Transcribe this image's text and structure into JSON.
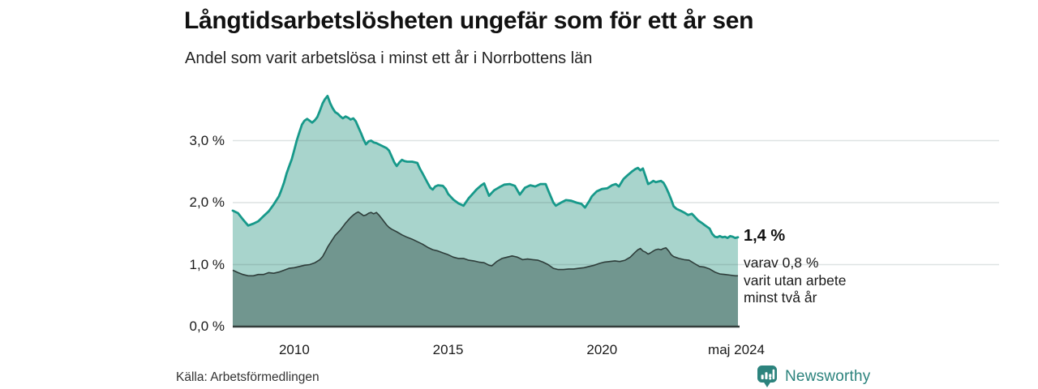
{
  "header": {
    "title": "Långtidsarbetslösheten ungefär som för ett år sen",
    "subtitle": "Andel som varit arbetslösa i minst ett år i Norrbottens län"
  },
  "annotation": {
    "value_label": "1,4 %",
    "detail_lines": [
      "varav 0,8 %",
      "varit utan arbete",
      "minst två år"
    ]
  },
  "footer": {
    "source": "Källa: Arbetsförmedlingen",
    "brand": "Newsworthy"
  },
  "colors": {
    "outer_fill": "#a8d4cc",
    "outer_stroke": "#17998a",
    "inner_fill": "#71968f",
    "inner_stroke": "#2e3d3a",
    "gridline": "rgba(70,95,95,0.18)",
    "baseline": "#333d3b",
    "brand_teal": "#2c837d"
  },
  "chart_data": {
    "type": "area",
    "title": "Långtidsarbetslösheten ungefär som för ett år sen",
    "subtitle": "Andel som varit arbetslösa i minst ett år i Norrbottens län",
    "xlabel": "",
    "ylabel": "",
    "xlim": [
      2008.0,
      2024.42
    ],
    "ylim": [
      0,
      3.85
    ],
    "grid": true,
    "legend": "none",
    "y_ticks": [
      {
        "label": "0,0 %",
        "value": 0.0
      },
      {
        "label": "1,0 %",
        "value": 1.0
      },
      {
        "label": "2,0 %",
        "value": 2.0
      },
      {
        "label": "3,0 %",
        "value": 3.0
      }
    ],
    "x_ticks": [
      {
        "label": "2010",
        "value": 2010
      },
      {
        "label": "2015",
        "value": 2015
      },
      {
        "label": "2020",
        "value": 2020
      },
      {
        "label": "maj 2024",
        "value": 2024.42
      }
    ],
    "series": [
      {
        "name": "Arbetslösa minst ett år",
        "end_label": "1,4 %",
        "points": [
          [
            2008.0,
            1.87
          ],
          [
            2008.17,
            1.83
          ],
          [
            2008.33,
            1.73
          ],
          [
            2008.5,
            1.63
          ],
          [
            2008.67,
            1.66
          ],
          [
            2008.83,
            1.7
          ],
          [
            2009.0,
            1.78
          ],
          [
            2009.17,
            1.86
          ],
          [
            2009.33,
            1.97
          ],
          [
            2009.5,
            2.1
          ],
          [
            2009.58,
            2.2
          ],
          [
            2009.67,
            2.33
          ],
          [
            2009.75,
            2.47
          ],
          [
            2009.83,
            2.58
          ],
          [
            2009.92,
            2.7
          ],
          [
            2010.0,
            2.85
          ],
          [
            2010.08,
            3.0
          ],
          [
            2010.17,
            3.14
          ],
          [
            2010.25,
            3.26
          ],
          [
            2010.33,
            3.32
          ],
          [
            2010.42,
            3.35
          ],
          [
            2010.5,
            3.32
          ],
          [
            2010.58,
            3.29
          ],
          [
            2010.67,
            3.33
          ],
          [
            2010.75,
            3.38
          ],
          [
            2010.83,
            3.48
          ],
          [
            2010.92,
            3.6
          ],
          [
            2011.0,
            3.67
          ],
          [
            2011.08,
            3.72
          ],
          [
            2011.17,
            3.6
          ],
          [
            2011.25,
            3.52
          ],
          [
            2011.33,
            3.46
          ],
          [
            2011.42,
            3.43
          ],
          [
            2011.5,
            3.39
          ],
          [
            2011.58,
            3.36
          ],
          [
            2011.67,
            3.39
          ],
          [
            2011.75,
            3.37
          ],
          [
            2011.83,
            3.34
          ],
          [
            2011.92,
            3.36
          ],
          [
            2012.0,
            3.31
          ],
          [
            2012.08,
            3.22
          ],
          [
            2012.17,
            3.12
          ],
          [
            2012.25,
            3.02
          ],
          [
            2012.33,
            2.94
          ],
          [
            2012.42,
            2.99
          ],
          [
            2012.5,
            3.0
          ],
          [
            2012.58,
            2.97
          ],
          [
            2012.67,
            2.96
          ],
          [
            2012.83,
            2.92
          ],
          [
            2013.0,
            2.88
          ],
          [
            2013.08,
            2.84
          ],
          [
            2013.17,
            2.74
          ],
          [
            2013.25,
            2.65
          ],
          [
            2013.33,
            2.59
          ],
          [
            2013.42,
            2.65
          ],
          [
            2013.5,
            2.69
          ],
          [
            2013.58,
            2.67
          ],
          [
            2013.67,
            2.66
          ],
          [
            2013.83,
            2.66
          ],
          [
            2014.0,
            2.64
          ],
          [
            2014.08,
            2.55
          ],
          [
            2014.17,
            2.47
          ],
          [
            2014.33,
            2.32
          ],
          [
            2014.42,
            2.24
          ],
          [
            2014.5,
            2.21
          ],
          [
            2014.58,
            2.26
          ],
          [
            2014.67,
            2.28
          ],
          [
            2014.83,
            2.27
          ],
          [
            2014.92,
            2.22
          ],
          [
            2015.0,
            2.14
          ],
          [
            2015.17,
            2.05
          ],
          [
            2015.33,
            1.99
          ],
          [
            2015.5,
            1.95
          ],
          [
            2015.67,
            2.07
          ],
          [
            2015.83,
            2.16
          ],
          [
            2015.92,
            2.21
          ],
          [
            2016.08,
            2.28
          ],
          [
            2016.17,
            2.31
          ],
          [
            2016.25,
            2.21
          ],
          [
            2016.33,
            2.11
          ],
          [
            2016.42,
            2.16
          ],
          [
            2016.5,
            2.2
          ],
          [
            2016.67,
            2.25
          ],
          [
            2016.83,
            2.29
          ],
          [
            2017.0,
            2.3
          ],
          [
            2017.17,
            2.27
          ],
          [
            2017.33,
            2.13
          ],
          [
            2017.5,
            2.24
          ],
          [
            2017.67,
            2.28
          ],
          [
            2017.83,
            2.26
          ],
          [
            2018.0,
            2.3
          ],
          [
            2018.17,
            2.3
          ],
          [
            2018.25,
            2.2
          ],
          [
            2018.42,
            2.0
          ],
          [
            2018.5,
            1.95
          ],
          [
            2018.67,
            2.0
          ],
          [
            2018.83,
            2.04
          ],
          [
            2019.0,
            2.03
          ],
          [
            2019.17,
            2.0
          ],
          [
            2019.33,
            1.98
          ],
          [
            2019.45,
            1.92
          ],
          [
            2019.58,
            2.02
          ],
          [
            2019.67,
            2.1
          ],
          [
            2019.83,
            2.18
          ],
          [
            2020.0,
            2.22
          ],
          [
            2020.17,
            2.23
          ],
          [
            2020.33,
            2.28
          ],
          [
            2020.45,
            2.3
          ],
          [
            2020.55,
            2.26
          ],
          [
            2020.7,
            2.38
          ],
          [
            2020.83,
            2.44
          ],
          [
            2020.97,
            2.5
          ],
          [
            2021.08,
            2.54
          ],
          [
            2021.17,
            2.56
          ],
          [
            2021.25,
            2.52
          ],
          [
            2021.33,
            2.55
          ],
          [
            2021.42,
            2.42
          ],
          [
            2021.5,
            2.3
          ],
          [
            2021.58,
            2.32
          ],
          [
            2021.67,
            2.35
          ],
          [
            2021.75,
            2.33
          ],
          [
            2021.83,
            2.34
          ],
          [
            2021.92,
            2.35
          ],
          [
            2022.0,
            2.32
          ],
          [
            2022.08,
            2.25
          ],
          [
            2022.17,
            2.15
          ],
          [
            2022.25,
            2.05
          ],
          [
            2022.33,
            1.94
          ],
          [
            2022.42,
            1.9
          ],
          [
            2022.55,
            1.87
          ],
          [
            2022.67,
            1.84
          ],
          [
            2022.8,
            1.8
          ],
          [
            2022.92,
            1.82
          ],
          [
            2023.0,
            1.78
          ],
          [
            2023.13,
            1.71
          ],
          [
            2023.25,
            1.67
          ],
          [
            2023.33,
            1.64
          ],
          [
            2023.5,
            1.58
          ],
          [
            2023.58,
            1.5
          ],
          [
            2023.67,
            1.45
          ],
          [
            2023.75,
            1.44
          ],
          [
            2023.83,
            1.46
          ],
          [
            2023.92,
            1.44
          ],
          [
            2024.0,
            1.45
          ],
          [
            2024.08,
            1.43
          ],
          [
            2024.17,
            1.46
          ],
          [
            2024.25,
            1.45
          ],
          [
            2024.33,
            1.43
          ],
          [
            2024.42,
            1.44
          ]
        ]
      },
      {
        "name": "Varav utan arbete minst två år",
        "end_label": "0,8 %",
        "points": [
          [
            2008.0,
            0.91
          ],
          [
            2008.17,
            0.87
          ],
          [
            2008.33,
            0.84
          ],
          [
            2008.5,
            0.82
          ],
          [
            2008.67,
            0.82
          ],
          [
            2008.83,
            0.84
          ],
          [
            2009.0,
            0.84
          ],
          [
            2009.17,
            0.87
          ],
          [
            2009.33,
            0.86
          ],
          [
            2009.5,
            0.88
          ],
          [
            2009.67,
            0.91
          ],
          [
            2009.83,
            0.94
          ],
          [
            2010.0,
            0.95
          ],
          [
            2010.17,
            0.97
          ],
          [
            2010.33,
            0.99
          ],
          [
            2010.5,
            1.0
          ],
          [
            2010.67,
            1.03
          ],
          [
            2010.83,
            1.08
          ],
          [
            2010.92,
            1.13
          ],
          [
            2011.0,
            1.2
          ],
          [
            2011.08,
            1.28
          ],
          [
            2011.17,
            1.35
          ],
          [
            2011.33,
            1.47
          ],
          [
            2011.5,
            1.56
          ],
          [
            2011.67,
            1.67
          ],
          [
            2011.83,
            1.76
          ],
          [
            2011.92,
            1.8
          ],
          [
            2012.0,
            1.83
          ],
          [
            2012.08,
            1.85
          ],
          [
            2012.17,
            1.82
          ],
          [
            2012.25,
            1.79
          ],
          [
            2012.33,
            1.8
          ],
          [
            2012.42,
            1.83
          ],
          [
            2012.5,
            1.84
          ],
          [
            2012.58,
            1.82
          ],
          [
            2012.67,
            1.84
          ],
          [
            2012.75,
            1.8
          ],
          [
            2012.83,
            1.75
          ],
          [
            2013.0,
            1.64
          ],
          [
            2013.08,
            1.6
          ],
          [
            2013.17,
            1.57
          ],
          [
            2013.33,
            1.53
          ],
          [
            2013.5,
            1.48
          ],
          [
            2013.67,
            1.44
          ],
          [
            2013.83,
            1.41
          ],
          [
            2014.0,
            1.37
          ],
          [
            2014.17,
            1.33
          ],
          [
            2014.33,
            1.28
          ],
          [
            2014.5,
            1.24
          ],
          [
            2014.67,
            1.22
          ],
          [
            2014.83,
            1.19
          ],
          [
            2015.0,
            1.16
          ],
          [
            2015.17,
            1.12
          ],
          [
            2015.33,
            1.1
          ],
          [
            2015.5,
            1.1
          ],
          [
            2015.67,
            1.07
          ],
          [
            2015.83,
            1.06
          ],
          [
            2016.0,
            1.04
          ],
          [
            2016.17,
            1.03
          ],
          [
            2016.33,
            0.99
          ],
          [
            2016.42,
            0.98
          ],
          [
            2016.58,
            1.05
          ],
          [
            2016.75,
            1.1
          ],
          [
            2016.92,
            1.12
          ],
          [
            2017.08,
            1.14
          ],
          [
            2017.25,
            1.12
          ],
          [
            2017.42,
            1.08
          ],
          [
            2017.58,
            1.09
          ],
          [
            2017.75,
            1.08
          ],
          [
            2017.92,
            1.07
          ],
          [
            2018.08,
            1.04
          ],
          [
            2018.25,
            1.0
          ],
          [
            2018.42,
            0.94
          ],
          [
            2018.58,
            0.92
          ],
          [
            2018.75,
            0.92
          ],
          [
            2018.92,
            0.93
          ],
          [
            2019.08,
            0.93
          ],
          [
            2019.25,
            0.94
          ],
          [
            2019.42,
            0.95
          ],
          [
            2019.58,
            0.97
          ],
          [
            2019.75,
            0.99
          ],
          [
            2019.92,
            1.02
          ],
          [
            2020.08,
            1.04
          ],
          [
            2020.25,
            1.05
          ],
          [
            2020.42,
            1.06
          ],
          [
            2020.58,
            1.05
          ],
          [
            2020.75,
            1.07
          ],
          [
            2020.92,
            1.12
          ],
          [
            2021.08,
            1.2
          ],
          [
            2021.17,
            1.24
          ],
          [
            2021.25,
            1.26
          ],
          [
            2021.33,
            1.22
          ],
          [
            2021.42,
            1.2
          ],
          [
            2021.5,
            1.17
          ],
          [
            2021.58,
            1.19
          ],
          [
            2021.67,
            1.22
          ],
          [
            2021.75,
            1.24
          ],
          [
            2021.83,
            1.25
          ],
          [
            2021.92,
            1.24
          ],
          [
            2022.0,
            1.26
          ],
          [
            2022.08,
            1.27
          ],
          [
            2022.17,
            1.22
          ],
          [
            2022.25,
            1.16
          ],
          [
            2022.33,
            1.13
          ],
          [
            2022.5,
            1.1
          ],
          [
            2022.67,
            1.08
          ],
          [
            2022.83,
            1.07
          ],
          [
            2023.0,
            1.02
          ],
          [
            2023.17,
            0.97
          ],
          [
            2023.33,
            0.96
          ],
          [
            2023.5,
            0.93
          ],
          [
            2023.67,
            0.88
          ],
          [
            2023.83,
            0.85
          ],
          [
            2024.0,
            0.84
          ],
          [
            2024.17,
            0.83
          ],
          [
            2024.33,
            0.82
          ],
          [
            2024.42,
            0.82
          ]
        ]
      }
    ]
  }
}
